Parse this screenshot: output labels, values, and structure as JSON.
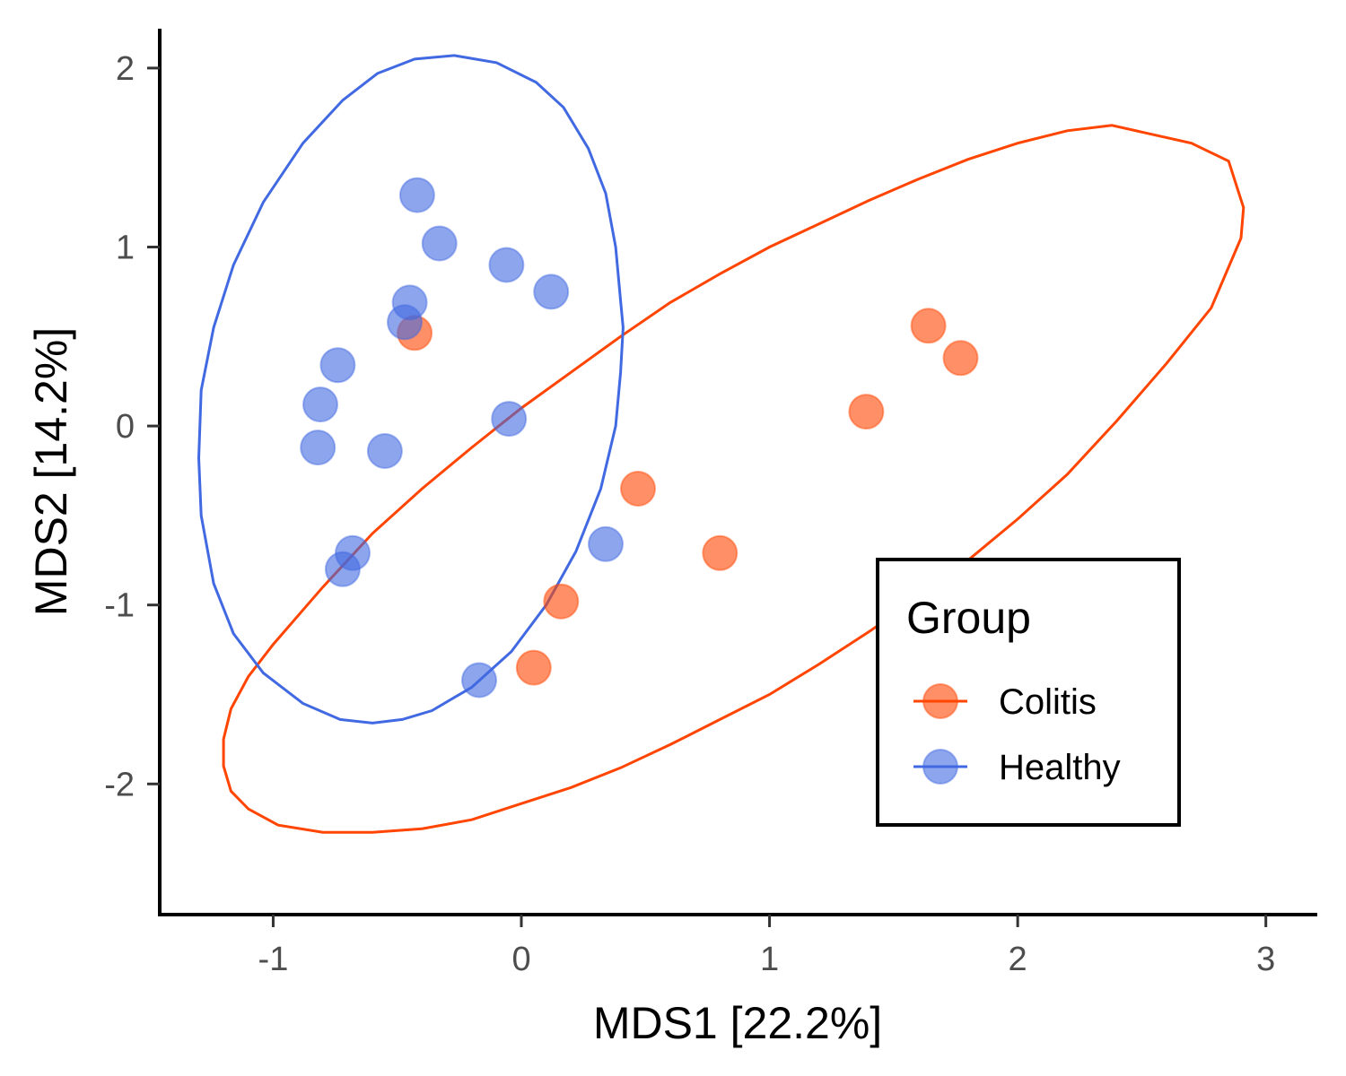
{
  "chart_data": {
    "type": "scatter",
    "xlabel": "MDS1 [22.2%]",
    "ylabel": "MDS2 [14.2%]",
    "xlim": [
      -1.45,
      3.2
    ],
    "ylim": [
      -2.72,
      2.22
    ],
    "x_ticks": [
      -1,
      0,
      1,
      2,
      3
    ],
    "x_tick_labels": [
      "-1",
      "0",
      "1",
      "2",
      "3"
    ],
    "y_ticks": [
      -2,
      -1,
      0,
      1,
      2
    ],
    "y_tick_labels": [
      "-2",
      "-1",
      "0",
      "1",
      "2"
    ],
    "grid": false,
    "legend": {
      "title": "Group",
      "position": "bottom-right",
      "entries": [
        "Colitis",
        "Healthy"
      ]
    },
    "series": [
      {
        "name": "Colitis",
        "color": "#FF4500",
        "points": [
          {
            "x": -0.43,
            "y": 0.52
          },
          {
            "x": 1.64,
            "y": 0.56
          },
          {
            "x": 1.77,
            "y": 0.38
          },
          {
            "x": 1.39,
            "y": 0.08
          },
          {
            "x": 0.47,
            "y": -0.35
          },
          {
            "x": 0.8,
            "y": -0.71
          },
          {
            "x": 0.16,
            "y": -0.98
          },
          {
            "x": 0.05,
            "y": -1.35
          }
        ],
        "ellipse": [
          [
            2.38,
            1.68
          ],
          [
            2.7,
            1.58
          ],
          [
            2.85,
            1.48
          ],
          [
            2.91,
            1.22
          ],
          [
            2.9,
            1.05
          ],
          [
            2.78,
            0.66
          ],
          [
            2.6,
            0.35
          ],
          [
            2.4,
            0.03
          ],
          [
            2.2,
            -0.27
          ],
          [
            2.0,
            -0.52
          ],
          [
            1.8,
            -0.75
          ],
          [
            1.6,
            -0.96
          ],
          [
            1.4,
            -1.15
          ],
          [
            1.2,
            -1.33
          ],
          [
            1.0,
            -1.5
          ],
          [
            0.8,
            -1.64
          ],
          [
            0.6,
            -1.78
          ],
          [
            0.4,
            -1.91
          ],
          [
            0.2,
            -2.02
          ],
          [
            0.0,
            -2.11
          ],
          [
            -0.2,
            -2.2
          ],
          [
            -0.4,
            -2.25
          ],
          [
            -0.6,
            -2.27
          ],
          [
            -0.8,
            -2.27
          ],
          [
            -0.98,
            -2.23
          ],
          [
            -1.1,
            -2.14
          ],
          [
            -1.17,
            -2.04
          ],
          [
            -1.2,
            -1.9
          ],
          [
            -1.2,
            -1.75
          ],
          [
            -1.17,
            -1.58
          ],
          [
            -1.1,
            -1.4
          ],
          [
            -1.0,
            -1.22
          ],
          [
            -0.9,
            -1.06
          ],
          [
            -0.8,
            -0.9
          ],
          [
            -0.6,
            -0.6
          ],
          [
            -0.4,
            -0.35
          ],
          [
            -0.2,
            -0.12
          ],
          [
            0.0,
            0.1
          ],
          [
            0.2,
            0.3
          ],
          [
            0.4,
            0.5
          ],
          [
            0.6,
            0.69
          ],
          [
            0.8,
            0.85
          ],
          [
            1.0,
            1.0
          ],
          [
            1.2,
            1.13
          ],
          [
            1.4,
            1.26
          ],
          [
            1.6,
            1.38
          ],
          [
            1.8,
            1.49
          ],
          [
            2.0,
            1.58
          ],
          [
            2.2,
            1.65
          ]
        ]
      },
      {
        "name": "Healthy",
        "color": "#4169E1",
        "points": [
          {
            "x": -0.42,
            "y": 1.29
          },
          {
            "x": -0.33,
            "y": 1.02
          },
          {
            "x": -0.06,
            "y": 0.9
          },
          {
            "x": 0.12,
            "y": 0.75
          },
          {
            "x": -0.45,
            "y": 0.69
          },
          {
            "x": -0.47,
            "y": 0.58
          },
          {
            "x": -0.74,
            "y": 0.34
          },
          {
            "x": -0.81,
            "y": 0.12
          },
          {
            "x": -0.82,
            "y": -0.12
          },
          {
            "x": -0.55,
            "y": -0.14
          },
          {
            "x": -0.05,
            "y": 0.04
          },
          {
            "x": 0.34,
            "y": -0.66
          },
          {
            "x": -0.68,
            "y": -0.71
          },
          {
            "x": -0.72,
            "y": -0.8
          },
          {
            "x": -0.17,
            "y": -1.42
          }
        ],
        "ellipse": [
          [
            -0.27,
            2.07
          ],
          [
            -0.1,
            2.03
          ],
          [
            0.06,
            1.92
          ],
          [
            0.17,
            1.78
          ],
          [
            0.27,
            1.55
          ],
          [
            0.34,
            1.3
          ],
          [
            0.38,
            1.0
          ],
          [
            0.4,
            0.7
          ],
          [
            0.41,
            0.55
          ],
          [
            0.4,
            0.3
          ],
          [
            0.38,
            0.0
          ],
          [
            0.32,
            -0.35
          ],
          [
            0.22,
            -0.7
          ],
          [
            0.1,
            -1.0
          ],
          [
            -0.04,
            -1.26
          ],
          [
            -0.2,
            -1.46
          ],
          [
            -0.36,
            -1.59
          ],
          [
            -0.48,
            -1.64
          ],
          [
            -0.6,
            -1.66
          ],
          [
            -0.73,
            -1.64
          ],
          [
            -0.88,
            -1.55
          ],
          [
            -1.04,
            -1.38
          ],
          [
            -1.16,
            -1.16
          ],
          [
            -1.24,
            -0.88
          ],
          [
            -1.29,
            -0.5
          ],
          [
            -1.3,
            -0.18
          ],
          [
            -1.29,
            0.2
          ],
          [
            -1.24,
            0.55
          ],
          [
            -1.16,
            0.9
          ],
          [
            -1.04,
            1.25
          ],
          [
            -0.88,
            1.58
          ],
          [
            -0.72,
            1.82
          ],
          [
            -0.58,
            1.97
          ],
          [
            -0.43,
            2.05
          ]
        ]
      }
    ]
  }
}
